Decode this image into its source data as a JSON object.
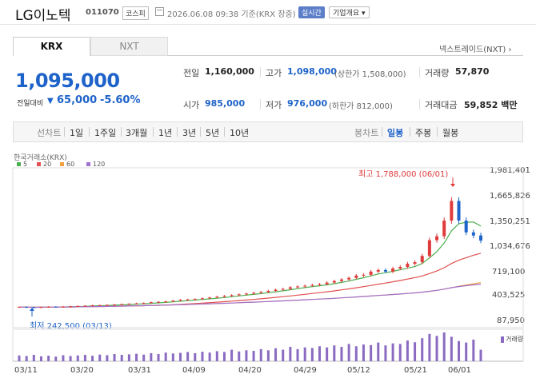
{
  "header": {
    "name": "LG이노텍",
    "code": "011070",
    "market": "코스피",
    "datetime": "2026.06.08 09:38  기준(KRX 장중)",
    "realtime": "실시간",
    "company_info": "기업개요 ▾"
  },
  "tabs": [
    "KRX",
    "NXT"
  ],
  "nxt_link": "넥스트레이드(NXT) ›",
  "quote": {
    "price": "1,095,000",
    "change_label": "전일대비",
    "change_arrow": "▼",
    "change": "65,000",
    "change_pct": "-5.60%"
  },
  "info": {
    "prev_label": "전일",
    "prev": "1,160,000",
    "high_label": "고가",
    "high": "1,098,000",
    "high_sub": "(상한가 1,508,000)",
    "vol_label": "거래량",
    "vol": "57,870",
    "open_label": "시가",
    "open": "985,000",
    "low_label": "저가",
    "low": "976,000",
    "low_sub": "(하한가 812,000)",
    "amt_label": "거래대금",
    "amt": "59,852 백만"
  },
  "toolbar": {
    "line_chart": "선차트",
    "periods": [
      "1일",
      "1주일",
      "3개월",
      "1년",
      "3년",
      "5년",
      "10년"
    ],
    "candle": "봉차트",
    "candle_periods": [
      "일봉",
      "주봉",
      "월봉"
    ]
  },
  "chart_data": {
    "type": "candlestick",
    "source": "한국거래소(KRX)",
    "legend": [
      {
        "name": "5",
        "color": "#4caf50"
      },
      {
        "name": "20",
        "color": "#e05050"
      },
      {
        "name": "60",
        "color": "#f0a040"
      },
      {
        "name": "120",
        "color": "#a070d0"
      }
    ],
    "y_ticks": [
      "1,981,401",
      "1,665,826",
      "1,350,251",
      "1,034,676",
      "719,100",
      "403,525",
      "87,950"
    ],
    "x_ticks": [
      "03/11",
      "03/20",
      "03/31",
      "04/09",
      "04/20",
      "04/29",
      "05/12",
      "05/21",
      "06/01"
    ],
    "annotations": {
      "high": "최고 1,788,000 (06/01)",
      "low": "최저 242,500 (03/13)"
    },
    "volume_label": "거래량",
    "y_range": [
      87950,
      1981401
    ],
    "up_color": "#e03a3a",
    "down_color": "#1e63c9",
    "closes": [
      250000,
      245000,
      242500,
      248000,
      252000,
      250000,
      255000,
      258000,
      262000,
      265000,
      270000,
      272000,
      275000,
      280000,
      285000,
      290000,
      295000,
      300000,
      310000,
      315000,
      320000,
      330000,
      340000,
      345000,
      350000,
      360000,
      370000,
      380000,
      390000,
      400000,
      410000,
      420000,
      430000,
      440000,
      455000,
      470000,
      480000,
      500000,
      510000,
      520000,
      530000,
      540000,
      560000,
      580000,
      600000,
      620000,
      650000,
      660000,
      700000,
      720000,
      700000,
      740000,
      760000,
      800000,
      820000,
      900000,
      1100000,
      1150000,
      1350000,
      1600000,
      1350000,
      1200000,
      1160000,
      1095000
    ],
    "volumes": [
      20,
      18,
      22,
      17,
      19,
      16,
      21,
      18,
      20,
      22,
      19,
      23,
      21,
      25,
      22,
      24,
      26,
      23,
      28,
      25,
      30,
      27,
      29,
      32,
      28,
      33,
      30,
      35,
      32,
      40,
      34,
      38,
      36,
      42,
      38,
      45,
      40,
      50,
      42,
      48,
      46,
      52,
      48,
      55,
      50,
      60,
      52,
      58,
      56,
      65,
      55,
      62,
      60,
      72,
      66,
      80,
      95,
      88,
      100,
      85,
      70,
      65,
      75,
      40
    ]
  }
}
